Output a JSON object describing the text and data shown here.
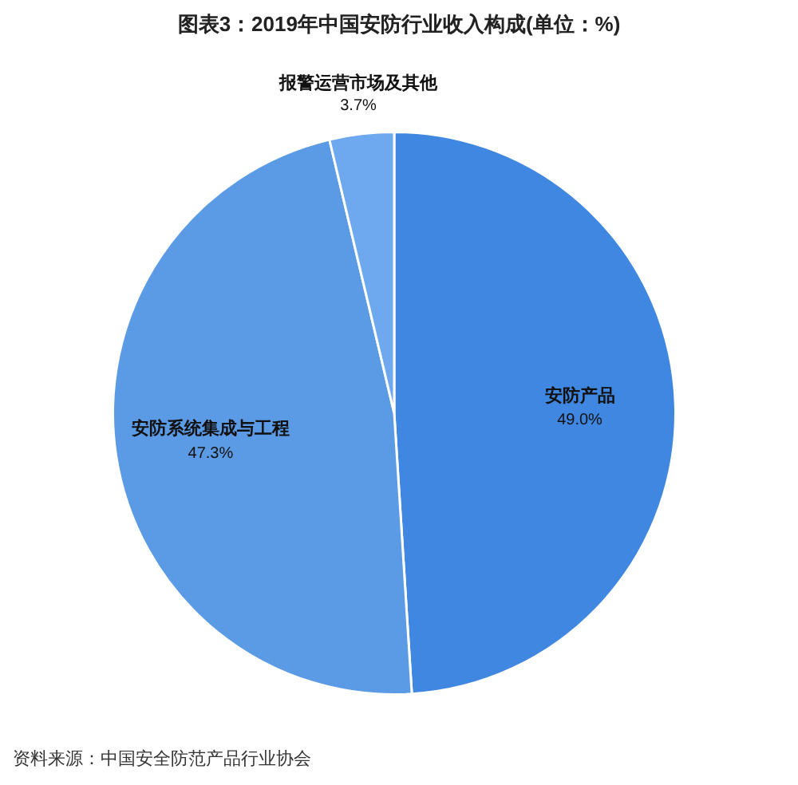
{
  "chart_data": {
    "type": "pie",
    "title": "图表3：2019年中国安防行业收入构成(单位：%)",
    "categories": [
      "安防产品",
      "安防系统集成与工程",
      "报警运营市场及其他"
    ],
    "values": [
      49.0,
      47.3,
      3.7
    ],
    "colors": [
      "#3f87e0",
      "#5b9be6",
      "#6ea8ef"
    ],
    "value_labels": [
      "49.0%",
      "47.3%",
      "3.7%"
    ],
    "annotations": [
      "资料来源：中国安全防范产品行业协会"
    ]
  }
}
